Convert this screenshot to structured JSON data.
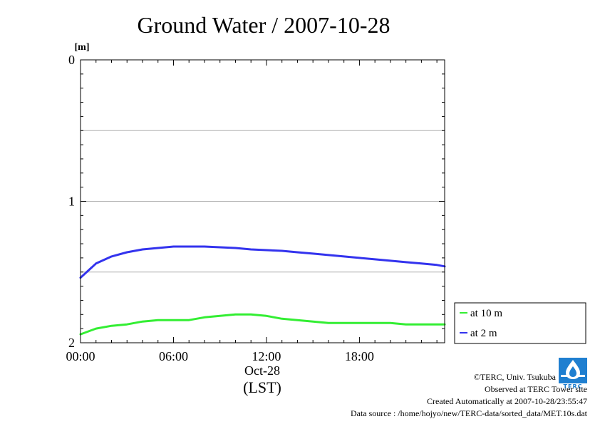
{
  "chart_data": {
    "type": "line",
    "title": "Ground Water / 2007-10-28",
    "unit_label": "[m]",
    "xlabel_date": "Oct-28",
    "xlabel": "(LST)",
    "x_ticks": [
      "00:00",
      "06:00",
      "12:00",
      "18:00"
    ],
    "x_tick_hours": [
      0,
      6,
      12,
      18
    ],
    "xlim_hours": [
      0,
      23.5
    ],
    "y_ticks": [
      0,
      1,
      2
    ],
    "y_gridlines": [
      0.5,
      1,
      1.5
    ],
    "ylim": [
      0,
      2
    ],
    "y_inverted": true,
    "legend_position": "right",
    "series": [
      {
        "name": "at 10 m",
        "color": "#33ee33",
        "x": [
          0,
          1,
          2,
          3,
          4,
          5,
          6,
          7,
          8,
          9,
          10,
          11,
          12,
          13,
          14,
          15,
          16,
          17,
          18,
          19,
          20,
          21,
          22,
          23,
          23.5
        ],
        "y": [
          1.94,
          1.9,
          1.88,
          1.87,
          1.85,
          1.84,
          1.84,
          1.84,
          1.82,
          1.81,
          1.8,
          1.8,
          1.81,
          1.83,
          1.84,
          1.85,
          1.86,
          1.86,
          1.86,
          1.86,
          1.86,
          1.87,
          1.87,
          1.87,
          1.87
        ]
      },
      {
        "name": "at 2 m",
        "color": "#3333ee",
        "x": [
          0,
          1,
          2,
          3,
          4,
          5,
          6,
          7,
          8,
          9,
          10,
          11,
          12,
          13,
          14,
          15,
          16,
          17,
          18,
          19,
          20,
          21,
          22,
          23,
          23.5
        ],
        "y": [
          1.54,
          1.44,
          1.39,
          1.36,
          1.34,
          1.33,
          1.32,
          1.32,
          1.32,
          1.325,
          1.33,
          1.34,
          1.345,
          1.35,
          1.36,
          1.37,
          1.38,
          1.39,
          1.4,
          1.41,
          1.42,
          1.43,
          1.44,
          1.45,
          1.46
        ]
      }
    ]
  },
  "footer": {
    "copyright": "©TERC, Univ. Tsukuba",
    "observed": "Observed at TERC Tower site",
    "created": "Created Automatically at 2007-10-28/23:55:47",
    "source": "Data source : /home/hojyo/new/TERC-data/sorted_data/MET.10s.dat"
  },
  "logo": {
    "icon": "terc-logo-icon",
    "text": "TERC",
    "color": "#1f7fd0"
  }
}
